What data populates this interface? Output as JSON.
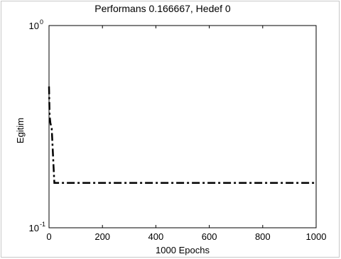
{
  "chart_data": {
    "type": "line",
    "title": "Performans  0.166667, Hedef  0",
    "xlabel": "1000 Epochs",
    "ylabel": "Egitim",
    "xlim": [
      0,
      1000
    ],
    "ylim": [
      0.1,
      1
    ],
    "yscale": "log",
    "xticks": [
      0,
      200,
      400,
      600,
      800,
      1000
    ],
    "xtick_labels": [
      "0",
      "200",
      "400",
      "600",
      "800",
      "1000"
    ],
    "yticks": [
      {
        "base": "10",
        "exp": "-1",
        "value": 0.1
      },
      {
        "base": "10",
        "exp": "0",
        "value": 1
      }
    ],
    "grid": false,
    "series": [
      {
        "line_style": "dash-dot",
        "color": "#000000",
        "x": [
          0,
          2,
          5,
          10,
          20,
          1000
        ],
        "y": [
          0.5,
          0.36,
          0.33,
          0.31,
          0.166667,
          0.166667
        ]
      }
    ]
  }
}
